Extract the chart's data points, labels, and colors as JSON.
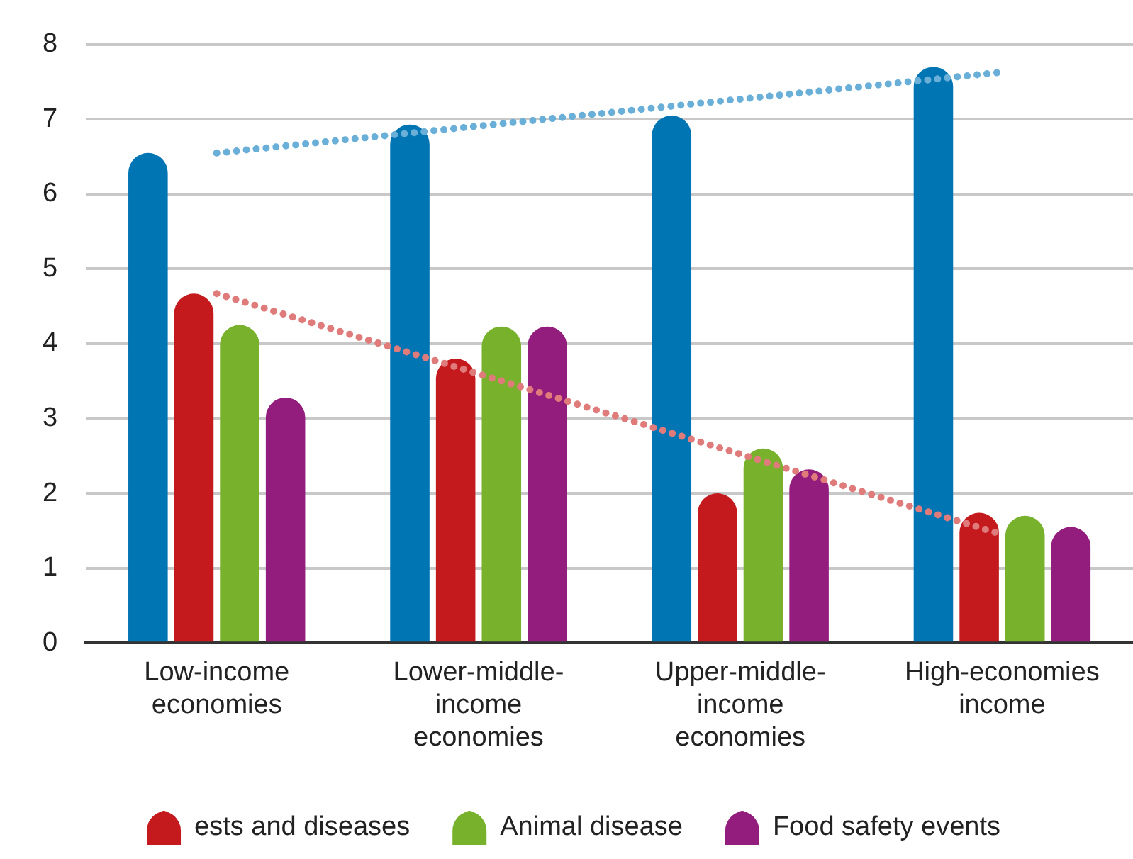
{
  "chart_data": {
    "type": "bar",
    "categories": [
      "Low-income\neconomies",
      "Lower-middle-\nincome\neconomies",
      "Upper-middle-\nincome\neconomies",
      "High-economies\nincome"
    ],
    "series": [
      {
        "color": "#0075b4",
        "values": [
          6.55,
          6.93,
          7.05,
          7.7
        ]
      },
      {
        "name": "ests and diseases",
        "color": "#c4191d",
        "values": [
          4.67,
          3.8,
          2.0,
          1.74
        ]
      },
      {
        "name": "Animal disease",
        "color": "#78b22c",
        "values": [
          4.25,
          4.23,
          2.6,
          1.7
        ]
      },
      {
        "name": "Food safety events",
        "color": "#931d7c",
        "values": [
          3.28,
          4.23,
          2.32,
          1.55
        ]
      },
      {
        "type": "line",
        "color": "#6aafd8",
        "x": [
          "Low-income\neconomies",
          "High-economies\nincome"
        ],
        "values": [
          6.55,
          7.63
        ],
        "line_style": "dotted",
        "marker": "none"
      },
      {
        "type": "line",
        "color": "#e07b7b",
        "x": [
          "Low-income\neconomies",
          "High-economies\nincome"
        ],
        "values": [
          4.67,
          1.45
        ],
        "line_style": "dotted",
        "marker": "none"
      }
    ],
    "ylim": [
      0,
      8
    ],
    "yticks": [
      0,
      1,
      2,
      3,
      4,
      5,
      6,
      7,
      8
    ],
    "grid": "y",
    "legend": "bottom"
  }
}
